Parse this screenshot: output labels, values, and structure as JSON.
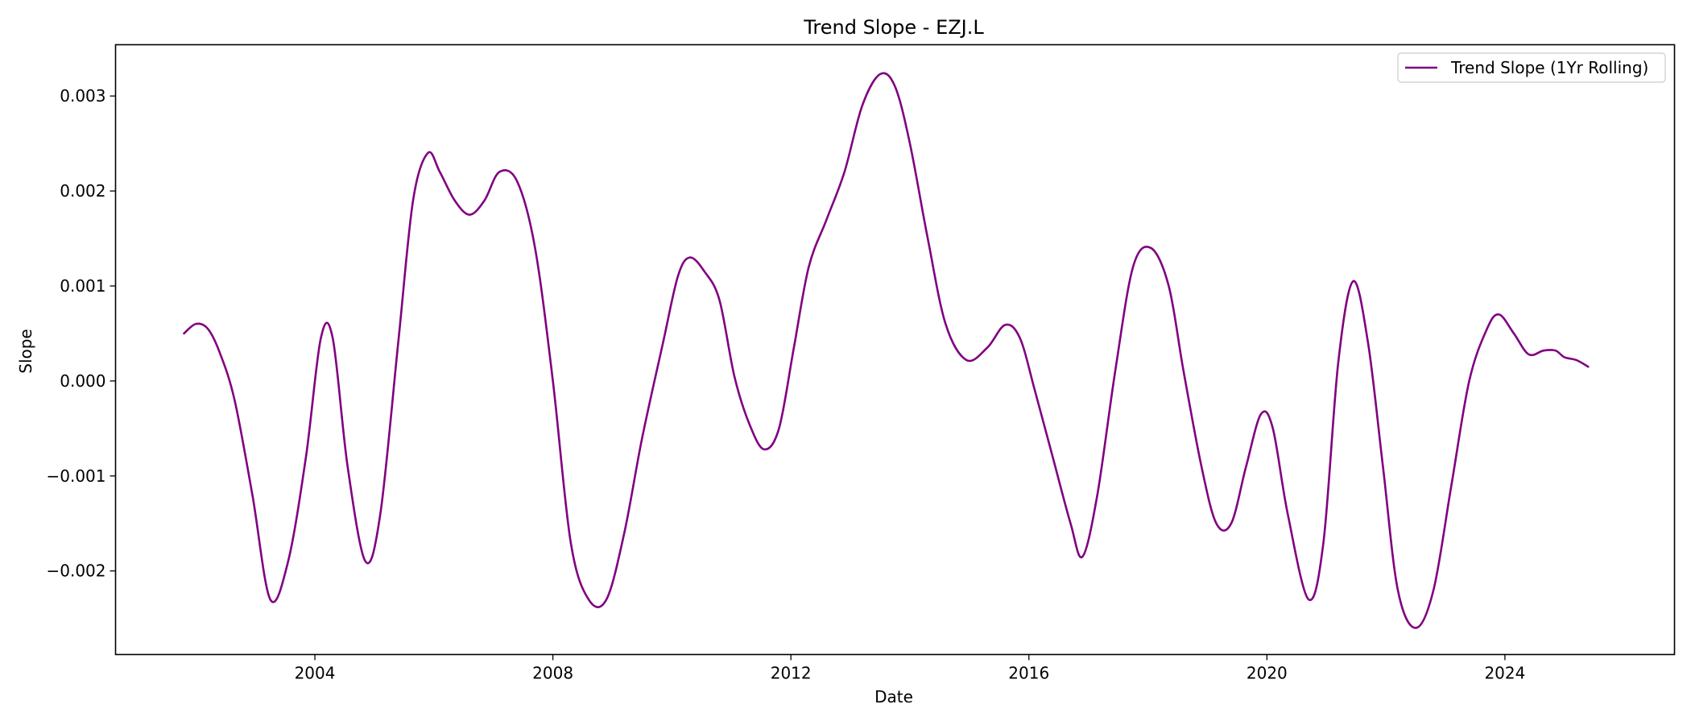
{
  "chart_data": {
    "type": "line",
    "title": "Trend Slope - EZJ.L",
    "xlabel": "Date",
    "ylabel": "Slope",
    "x_ticks": [
      "2004",
      "2008",
      "2012",
      "2016",
      "2020",
      "2024"
    ],
    "y_ticks": [
      "−0.002",
      "−0.001",
      "0.000",
      "0.001",
      "0.002",
      "0.003"
    ],
    "x_tick_values": [
      2004,
      2008,
      2012,
      2016,
      2020,
      2024
    ],
    "y_tick_values": [
      -0.002,
      -0.001,
      0.0,
      0.001,
      0.002,
      0.003
    ],
    "xlim": [
      2000.65,
      2026.85
    ],
    "ylim": [
      -0.00288,
      0.00354
    ],
    "grid": false,
    "legend_position": "top-right",
    "colors": {
      "line": "#800080"
    },
    "series": [
      {
        "name": "Trend Slope (1Yr Rolling)",
        "x": [
          2001.8,
          2002.0,
          2002.2,
          2002.4,
          2002.65,
          2002.95,
          2003.25,
          2003.55,
          2003.85,
          2004.1,
          2004.3,
          2004.55,
          2004.85,
          2005.1,
          2005.4,
          2005.65,
          2005.9,
          2006.1,
          2006.35,
          2006.6,
          2006.85,
          2007.1,
          2007.4,
          2007.7,
          2008.0,
          2008.3,
          2008.6,
          2008.9,
          2009.2,
          2009.5,
          2009.85,
          2010.1,
          2010.3,
          2010.55,
          2010.8,
          2011.05,
          2011.3,
          2011.55,
          2011.8,
          2012.05,
          2012.3,
          2012.6,
          2012.9,
          2013.2,
          2013.5,
          2013.75,
          2014.0,
          2014.3,
          2014.6,
          2014.95,
          2015.3,
          2015.6,
          2015.85,
          2016.1,
          2016.4,
          2016.7,
          2016.9,
          2017.15,
          2017.45,
          2017.75,
          2018.05,
          2018.35,
          2018.6,
          2018.9,
          2019.15,
          2019.4,
          2019.65,
          2019.9,
          2020.1,
          2020.35,
          2020.7,
          2020.95,
          2021.2,
          2021.45,
          2021.7,
          2021.95,
          2022.2,
          2022.5,
          2022.8,
          2023.1,
          2023.4,
          2023.7,
          2023.9,
          2024.15,
          2024.4,
          2024.65,
          2024.85,
          2025.0,
          2025.2,
          2025.4
        ],
        "y": [
          0.0005,
          0.0006,
          0.00055,
          0.0003,
          -0.0002,
          -0.0012,
          -0.0023,
          -0.0019,
          -0.0008,
          0.00045,
          0.00045,
          -0.0009,
          -0.0019,
          -0.0014,
          0.0004,
          0.0019,
          0.0024,
          0.0022,
          0.0019,
          0.00175,
          0.0019,
          0.0022,
          0.0021,
          0.0014,
          0.0,
          -0.0017,
          -0.0023,
          -0.0023,
          -0.0016,
          -0.0006,
          0.0004,
          0.0011,
          0.0013,
          0.00115,
          0.00085,
          5e-05,
          -0.00045,
          -0.00072,
          -0.0005,
          0.00035,
          0.0012,
          0.0017,
          0.0022,
          0.0029,
          0.00323,
          0.0031,
          0.0025,
          0.0015,
          0.0006,
          0.00022,
          0.00035,
          0.00059,
          0.00045,
          -0.0001,
          -0.0008,
          -0.0015,
          -0.00185,
          -0.0012,
          0.0001,
          0.0012,
          0.0014,
          0.001,
          0.0001,
          -0.0009,
          -0.0015,
          -0.0015,
          -0.0009,
          -0.00035,
          -0.0005,
          -0.0014,
          -0.0023,
          -0.0017,
          0.0002,
          0.00105,
          0.0004,
          -0.0009,
          -0.0022,
          -0.0026,
          -0.0022,
          -0.0011,
          0.0,
          0.00055,
          0.0007,
          0.0005,
          0.00028,
          0.00032,
          0.00032,
          0.00025,
          0.00022,
          0.00015
        ]
      }
    ]
  }
}
